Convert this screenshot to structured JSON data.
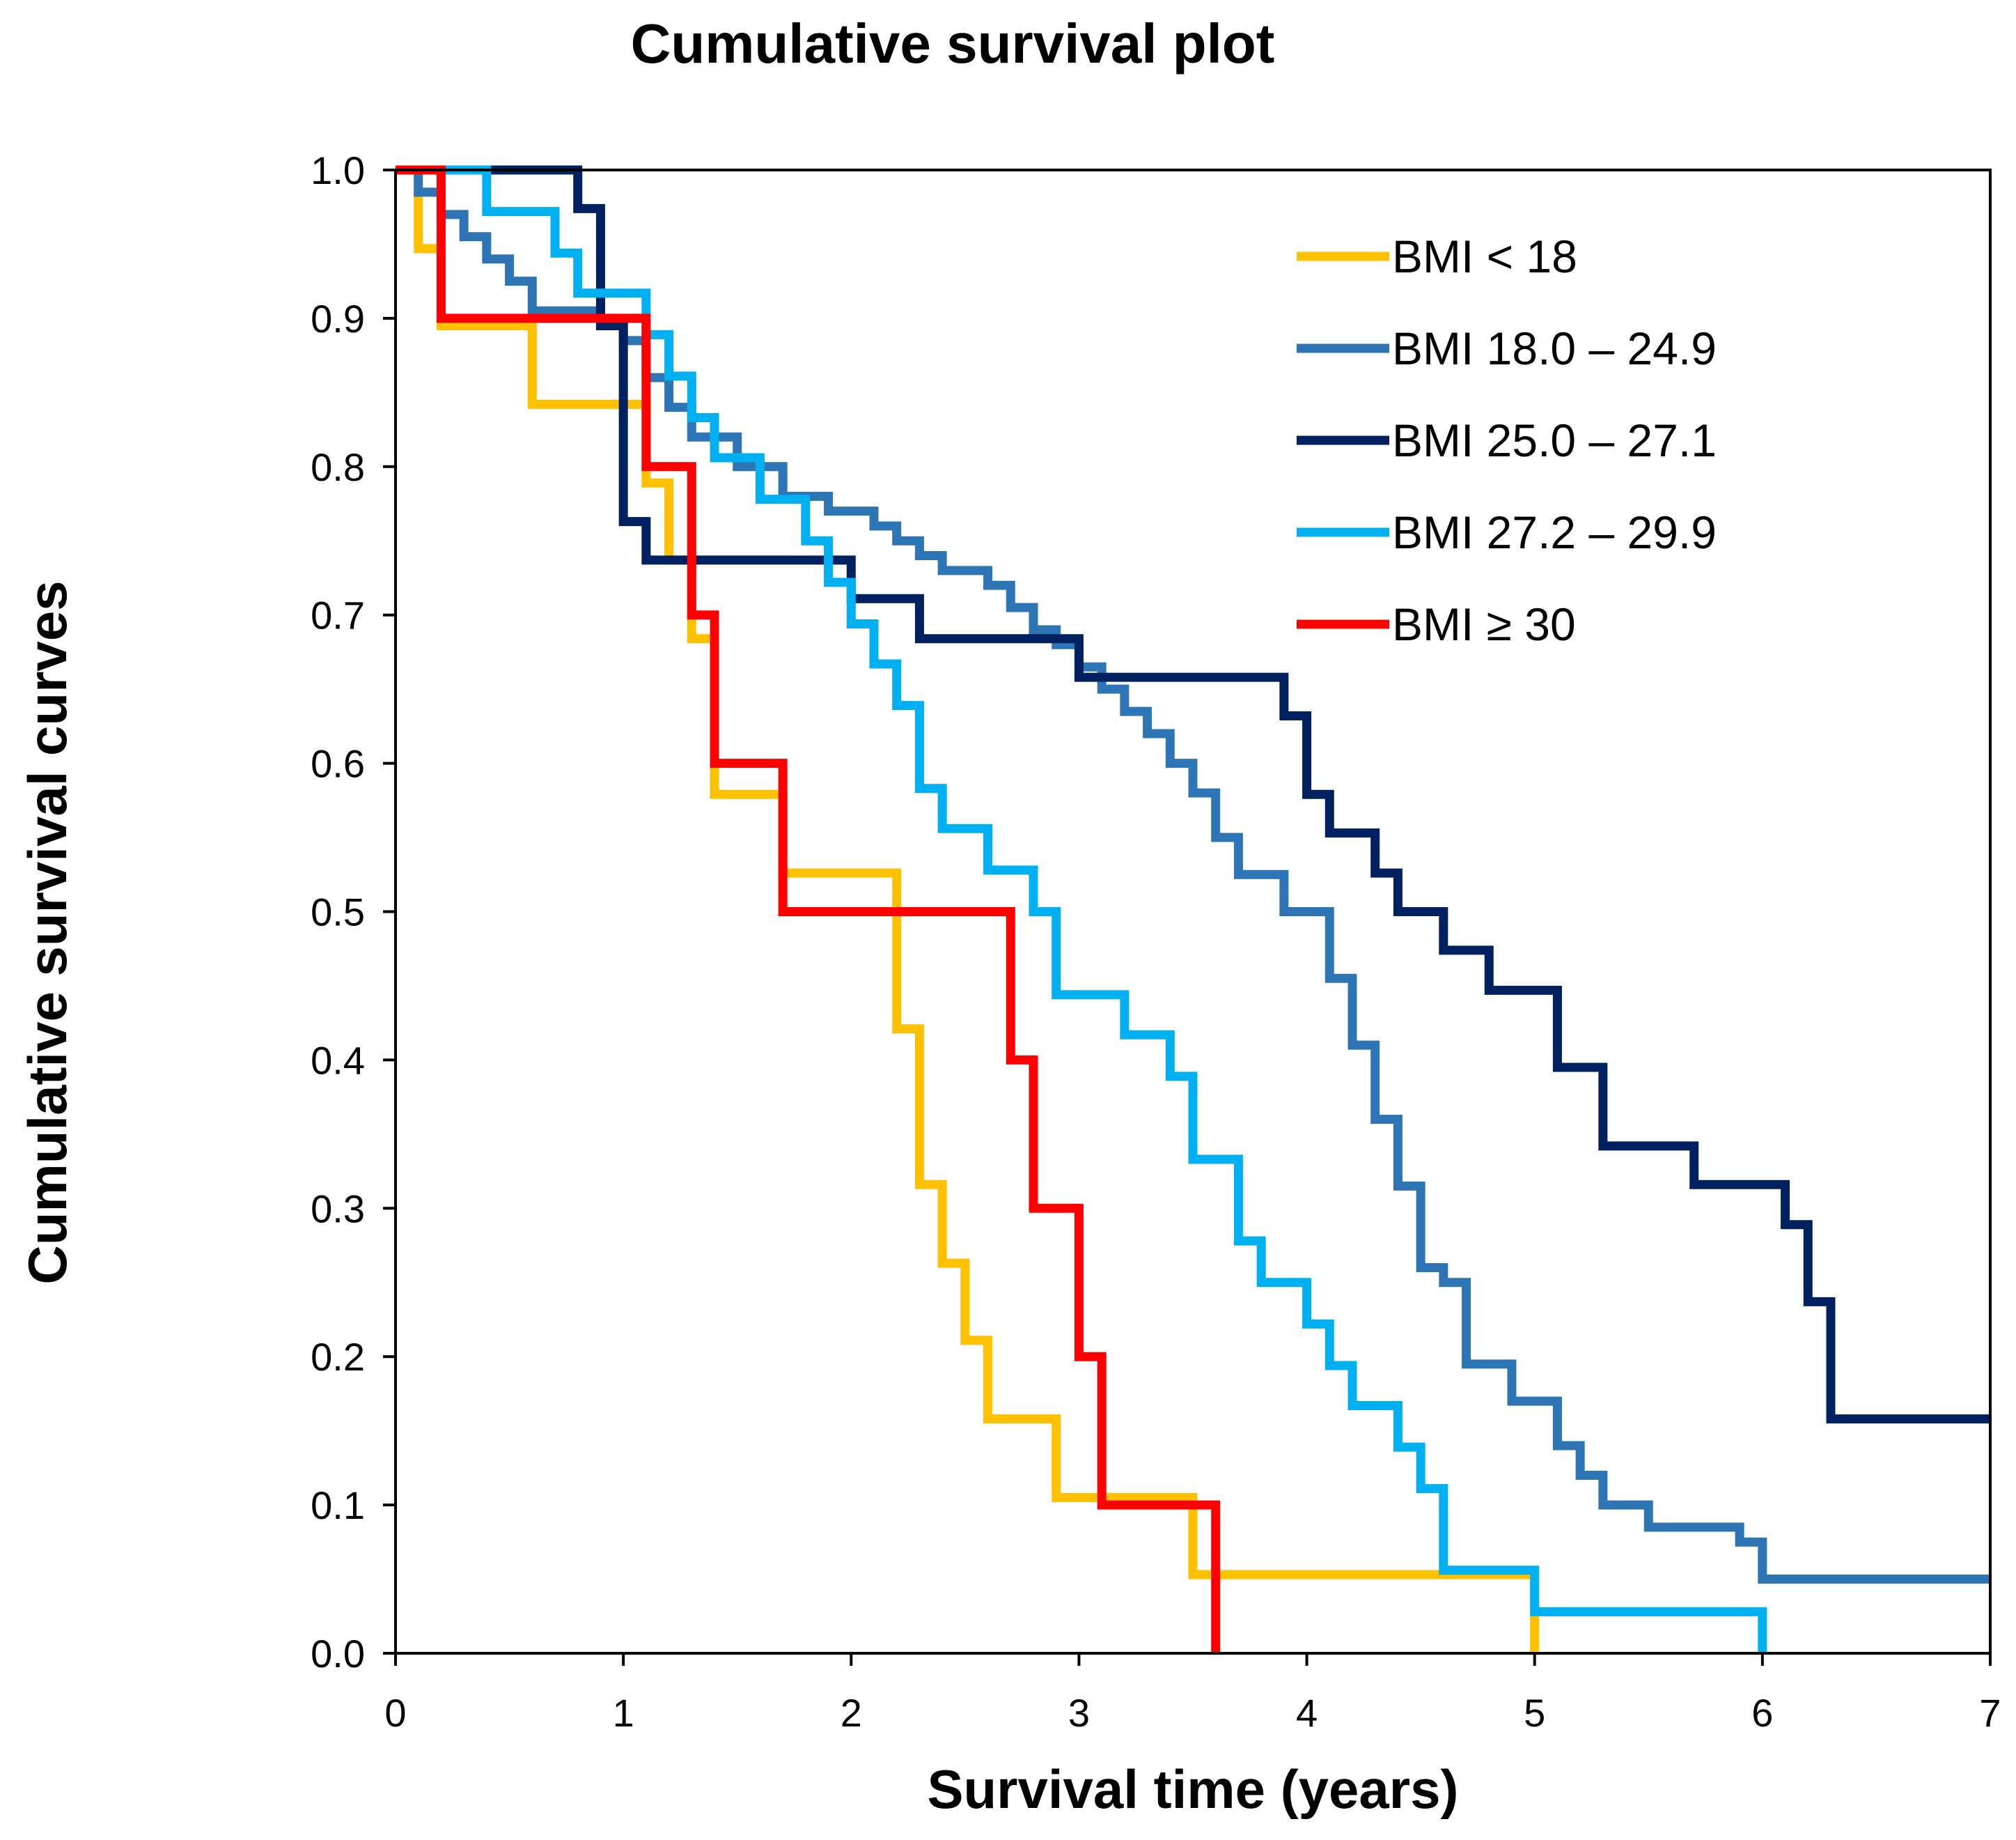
{
  "chart_data": {
    "type": "line",
    "title": "Cumulative survival plot",
    "xlabel": "Survival time (years)",
    "ylabel": "Cumulative survival curves",
    "xlim": [
      0,
      7
    ],
    "ylim": [
      0,
      1
    ],
    "x_ticks": [
      0,
      1,
      2,
      3,
      4,
      5,
      6,
      7
    ],
    "y_ticks": [
      0.0,
      0.1,
      0.2,
      0.3,
      0.4,
      0.5,
      0.6,
      0.7,
      0.8,
      0.9,
      1.0
    ],
    "x_tick_labels": [
      "0",
      "1",
      "2",
      "3",
      "4",
      "5",
      "6",
      "7"
    ],
    "y_tick_labels": [
      "0.0",
      "0.1",
      "0.2",
      "0.3",
      "0.4",
      "0.5",
      "0.6",
      "0.7",
      "0.8",
      "0.9",
      "1.0"
    ],
    "grid": false,
    "legend_position": "top-right",
    "series": [
      {
        "name": "BMI < 18",
        "color": "#FFC000",
        "step": true,
        "x": [
          0,
          0.1,
          0.2,
          0.6,
          1.1,
          1.2,
          1.3,
          1.4,
          1.7,
          2.2,
          2.3,
          2.4,
          2.5,
          2.6,
          2.9,
          3.5,
          5.0
        ],
        "y": [
          1.0,
          0.947,
          0.895,
          0.842,
          0.789,
          0.737,
          0.684,
          0.579,
          0.526,
          0.421,
          0.316,
          0.263,
          0.211,
          0.158,
          0.105,
          0.053,
          0.0
        ]
      },
      {
        "name": "BMI 18.0 – 24.9",
        "color": "#2E75B6",
        "step": true,
        "x": [
          0,
          0.1,
          0.2,
          0.3,
          0.4,
          0.5,
          0.6,
          0.9,
          1.0,
          1.1,
          1.2,
          1.3,
          1.5,
          1.7,
          1.9,
          2.1,
          2.2,
          2.3,
          2.4,
          2.6,
          2.7,
          2.8,
          2.9,
          3.0,
          3.1,
          3.2,
          3.3,
          3.4,
          3.5,
          3.6,
          3.7,
          3.9,
          4.1,
          4.2,
          4.3,
          4.4,
          4.5,
          4.6,
          4.7,
          4.9,
          5.0,
          5.1,
          5.2,
          5.3,
          5.5,
          5.8,
          5.9,
          6.0
        ],
        "y": [
          1.0,
          0.985,
          0.97,
          0.955,
          0.94,
          0.925,
          0.905,
          0.895,
          0.885,
          0.86,
          0.84,
          0.82,
          0.8,
          0.78,
          0.77,
          0.76,
          0.75,
          0.74,
          0.73,
          0.72,
          0.705,
          0.69,
          0.68,
          0.665,
          0.65,
          0.635,
          0.62,
          0.6,
          0.58,
          0.55,
          0.525,
          0.5,
          0.455,
          0.41,
          0.36,
          0.315,
          0.26,
          0.25,
          0.195,
          0.17,
          0.17,
          0.14,
          0.12,
          0.1,
          0.085,
          0.085,
          0.075,
          0.05
        ]
      },
      {
        "name": "BMI 25.0 – 27.1",
        "color": "#002060",
        "step": true,
        "x": [
          0,
          0.8,
          0.9,
          1.0,
          1.1,
          1.2,
          2.0,
          2.3,
          3.0,
          3.9,
          4.0,
          4.1,
          4.3,
          4.4,
          4.6,
          4.8,
          5.1,
          5.3,
          5.7,
          6.1,
          6.2,
          6.3
        ],
        "y": [
          1.0,
          0.974,
          0.895,
          0.763,
          0.737,
          0.737,
          0.711,
          0.684,
          0.658,
          0.632,
          0.579,
          0.553,
          0.526,
          0.5,
          0.474,
          0.447,
          0.395,
          0.342,
          0.316,
          0.289,
          0.237,
          0.158
        ]
      },
      {
        "name": "BMI 27.2 – 29.9",
        "color": "#00B0F0",
        "step": true,
        "x": [
          0,
          0.4,
          0.7,
          0.8,
          1.0,
          1.1,
          1.2,
          1.3,
          1.4,
          1.6,
          1.8,
          1.9,
          2.0,
          2.1,
          2.2,
          2.3,
          2.4,
          2.6,
          2.8,
          2.9,
          3.2,
          3.4,
          3.5,
          3.7,
          3.8,
          4.0,
          4.1,
          4.2,
          4.4,
          4.5,
          4.6,
          5.0,
          6.0
        ],
        "y": [
          1.0,
          0.972,
          0.944,
          0.917,
          0.917,
          0.889,
          0.861,
          0.833,
          0.806,
          0.778,
          0.75,
          0.722,
          0.694,
          0.667,
          0.639,
          0.583,
          0.556,
          0.528,
          0.5,
          0.444,
          0.417,
          0.389,
          0.333,
          0.278,
          0.25,
          0.222,
          0.194,
          0.167,
          0.139,
          0.111,
          0.056,
          0.028,
          0.0
        ]
      },
      {
        "name": "BMI ≥ 30",
        "color": "#FF0000",
        "step": true,
        "x": [
          0,
          0.2,
          1.1,
          1.3,
          1.4,
          1.7,
          2.7,
          2.8,
          3.0,
          3.1,
          3.6
        ],
        "y": [
          1.0,
          0.9,
          0.8,
          0.7,
          0.6,
          0.5,
          0.4,
          0.3,
          0.2,
          0.1,
          0.0
        ]
      }
    ]
  }
}
